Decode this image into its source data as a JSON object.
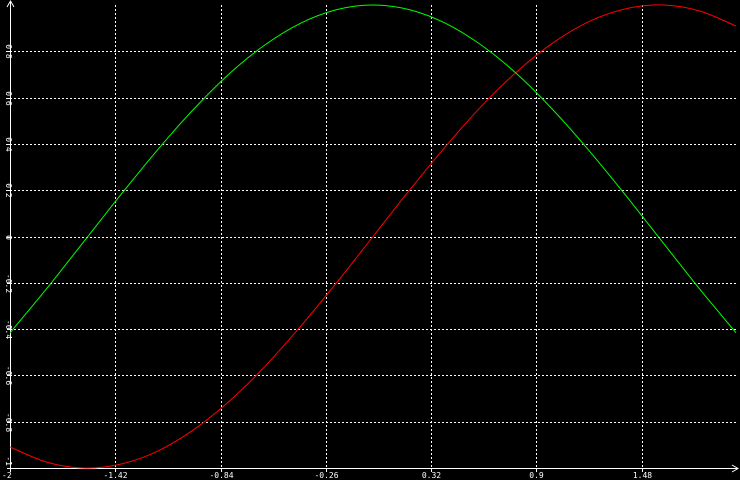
{
  "chart_data": {
    "type": "line",
    "title": "",
    "xlabel": "",
    "ylabel": "",
    "xlim": [
      -2,
      2
    ],
    "ylim": [
      -1,
      1
    ],
    "grid": true,
    "background": "#000000",
    "axis_color": "#ffffff",
    "grid_color": "#ffffff",
    "x_ticks": [
      -2,
      -1.42,
      -0.84,
      -0.26,
      0.32,
      0.9,
      1.48
    ],
    "x_tick_labels": [
      "-2",
      "-1.42",
      "-0.84",
      "-0.26",
      "0.32",
      "0.9",
      "1.48"
    ],
    "y_ticks": [
      -1,
      -0.8,
      -0.6,
      -0.4,
      -0.2,
      0,
      0.2,
      0.4,
      0.6,
      0.8
    ],
    "y_tick_labels": [
      "-1",
      "-0.8",
      "-0.6",
      "-0.4",
      "-0.2",
      "0",
      "0.2",
      "0.4",
      "0.6",
      "0.8"
    ],
    "series": [
      {
        "color": "#ff0000",
        "x": [
          -2,
          -1.8,
          -1.6,
          -1.4,
          -1.2,
          -1,
          -0.8,
          -0.6,
          -0.4,
          -0.2,
          0,
          0.2,
          0.4,
          0.6,
          0.8,
          1,
          1.2,
          1.4,
          1.6,
          1.8,
          2
        ],
        "values": [
          -0.909,
          -0.974,
          -1.0,
          -0.985,
          -0.932,
          -0.841,
          -0.717,
          -0.565,
          -0.389,
          -0.199,
          0.0,
          0.199,
          0.389,
          0.565,
          0.717,
          0.841,
          0.932,
          0.985,
          1.0,
          0.974,
          0.909
        ]
      },
      {
        "color": "#00ff00",
        "x": [
          -2,
          -1.8,
          -1.6,
          -1.4,
          -1.2,
          -1,
          -0.8,
          -0.6,
          -0.4,
          -0.2,
          0,
          0.2,
          0.4,
          0.6,
          0.8,
          1,
          1.2,
          1.4,
          1.6,
          1.8,
          2
        ],
        "values": [
          -0.416,
          -0.227,
          -0.029,
          0.17,
          0.362,
          0.54,
          0.697,
          0.825,
          0.921,
          0.98,
          1.0,
          0.98,
          0.921,
          0.825,
          0.697,
          0.54,
          0.362,
          0.17,
          -0.029,
          -0.227,
          -0.416
        ]
      }
    ]
  }
}
